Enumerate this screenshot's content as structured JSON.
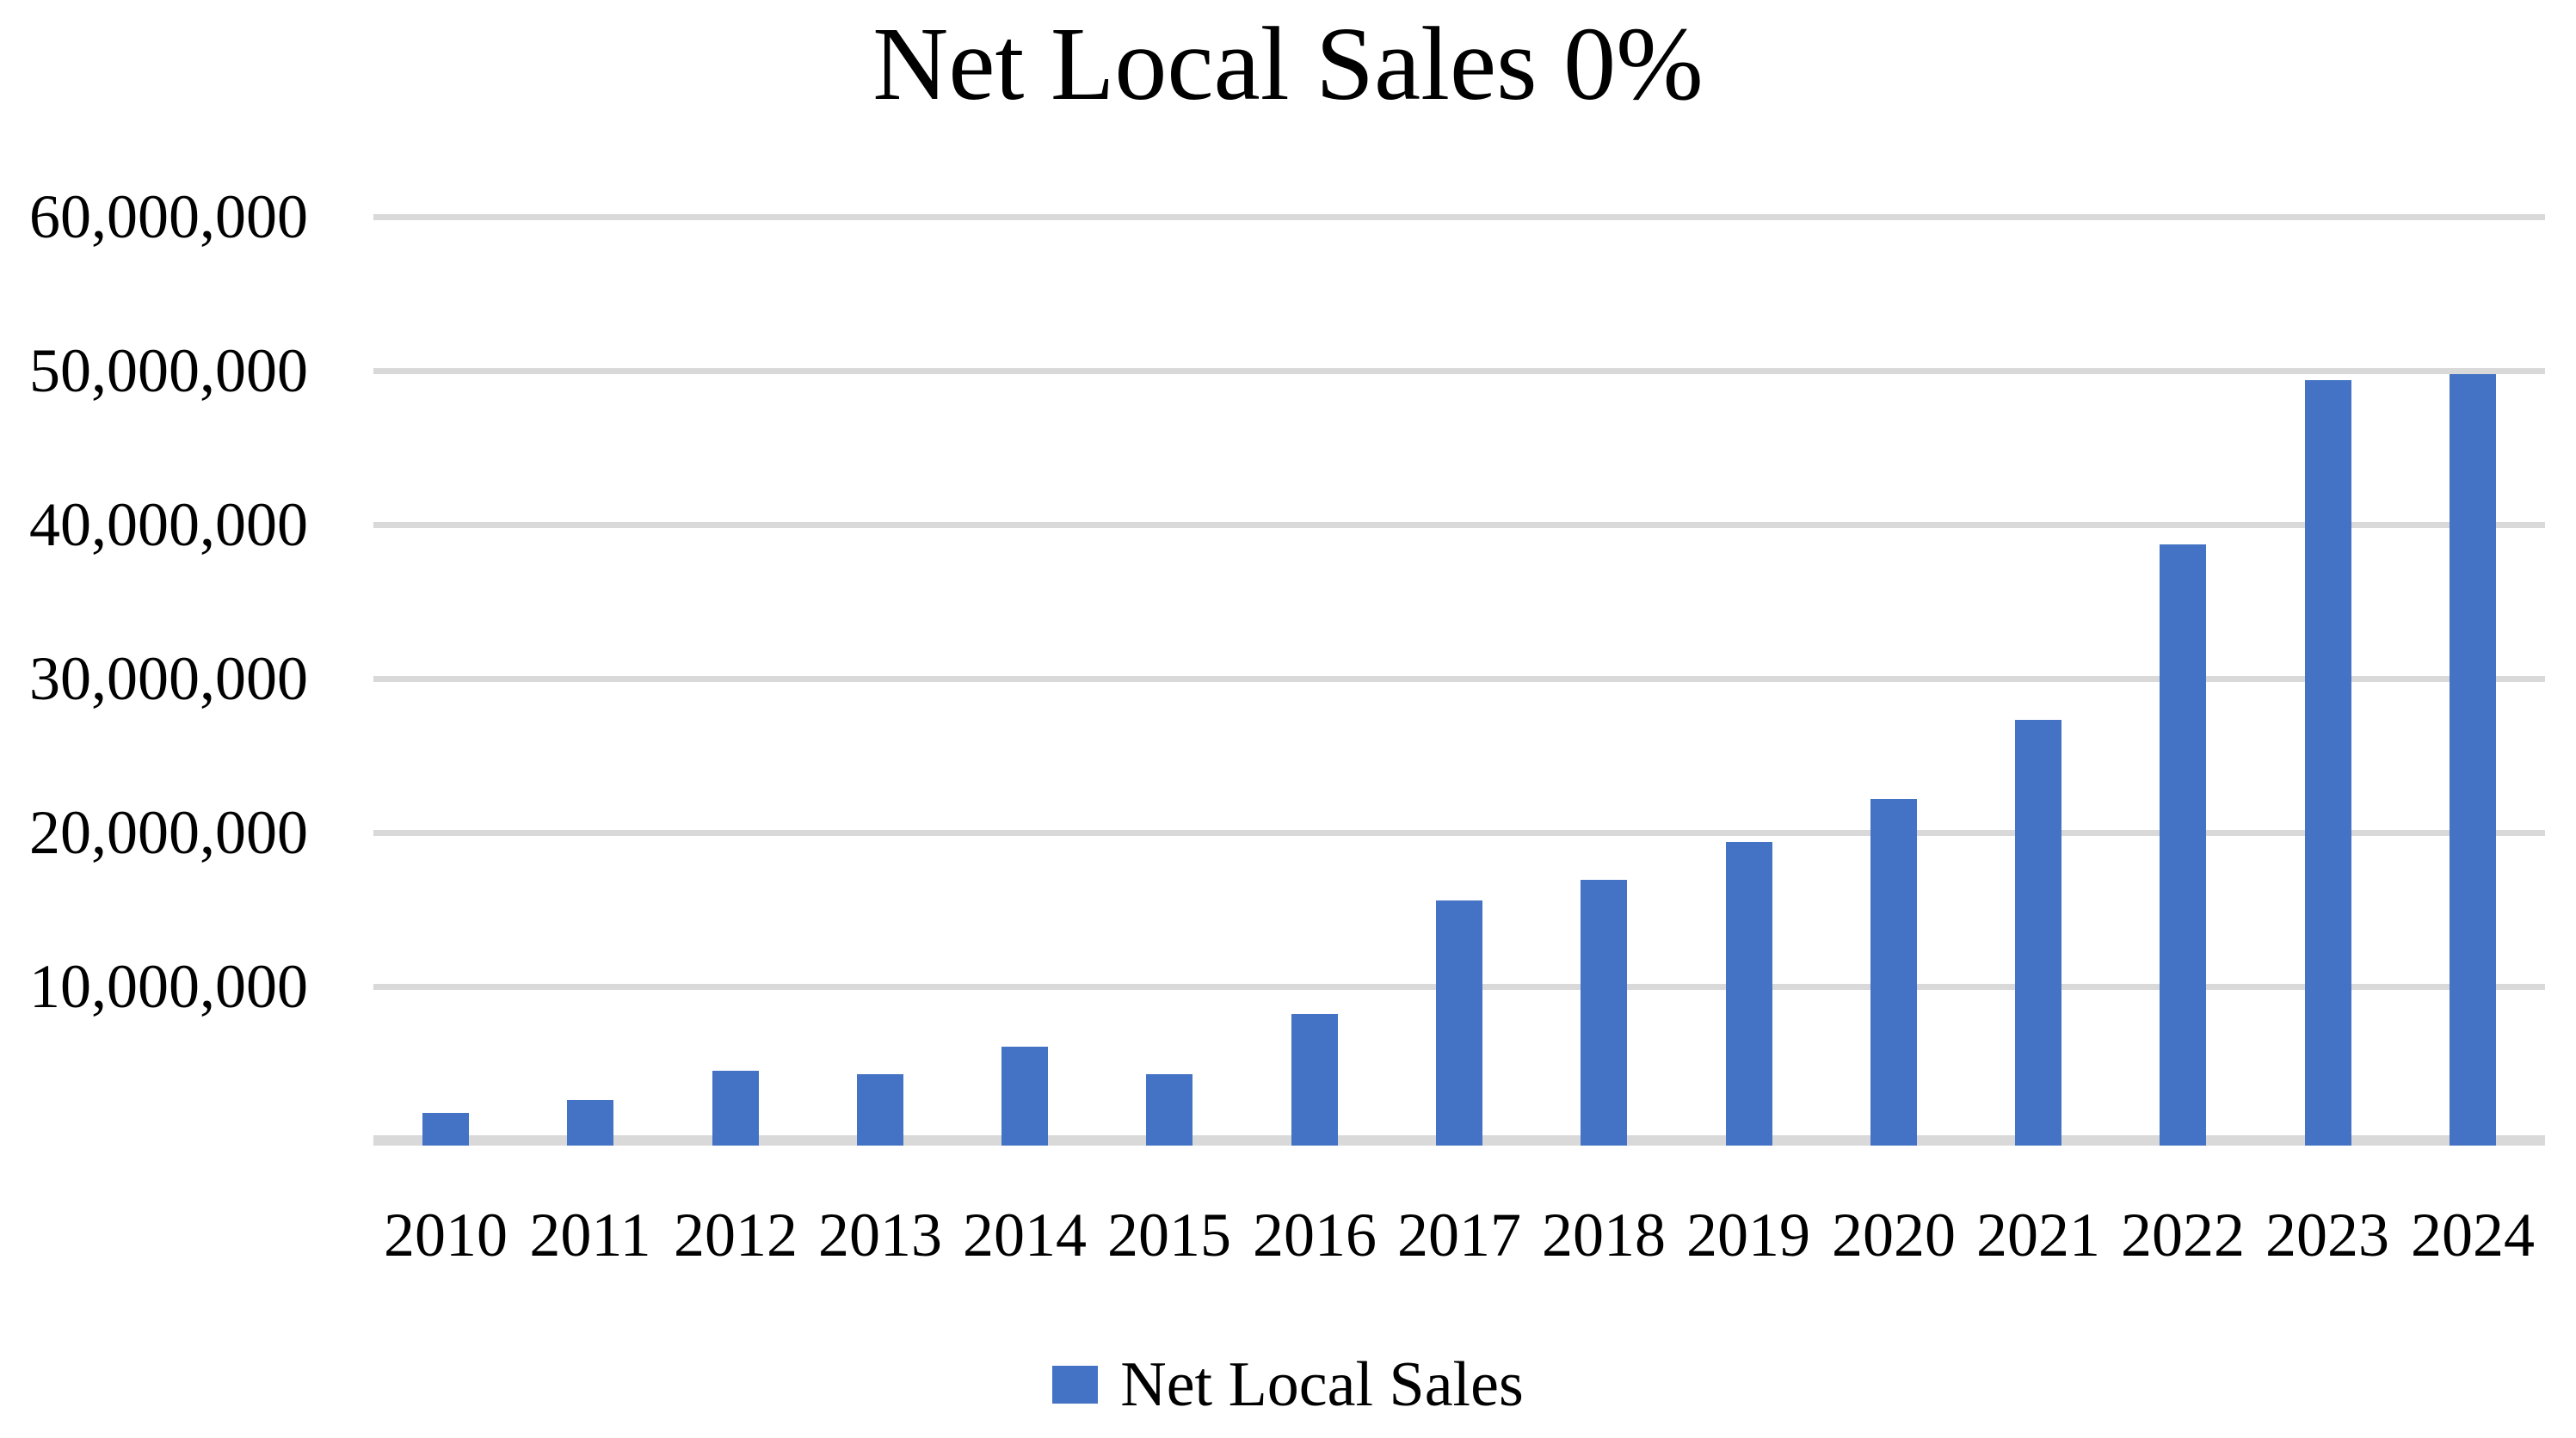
{
  "chart_data": {
    "type": "bar",
    "title": "Net Local Sales 0%",
    "categories": [
      "2010",
      "2011",
      "2012",
      "2013",
      "2014",
      "2015",
      "2016",
      "2017",
      "2018",
      "2019",
      "2020",
      "2021",
      "2022",
      "2023",
      "2024"
    ],
    "series": [
      {
        "name": "Net Local Sales",
        "color": "#4472C4",
        "values": [
          1800000,
          2600000,
          4500000,
          4300000,
          6100000,
          4300000,
          8200000,
          15600000,
          16900000,
          19400000,
          22200000,
          27300000,
          38700000,
          49400000,
          49800000
        ]
      }
    ],
    "xlabel": "",
    "ylabel": "",
    "ylim": [
      0,
      60000000
    ],
    "ytick_interval": 10000000,
    "ytick_labels_top_to_bottom": [
      "60,000,000",
      "50,000,000",
      "40,000,000",
      "30,000,000",
      "20,000,000",
      "10,000,000"
    ],
    "grid": true,
    "gridline_color": "#D9D9D9",
    "baseline_color": "#D9D9D9",
    "text_color": "#000000",
    "background_color": "#FFFFFF",
    "legend_position": "bottom",
    "legend": {
      "label": "Net Local Sales",
      "swatch_color": "#4472C4"
    }
  }
}
